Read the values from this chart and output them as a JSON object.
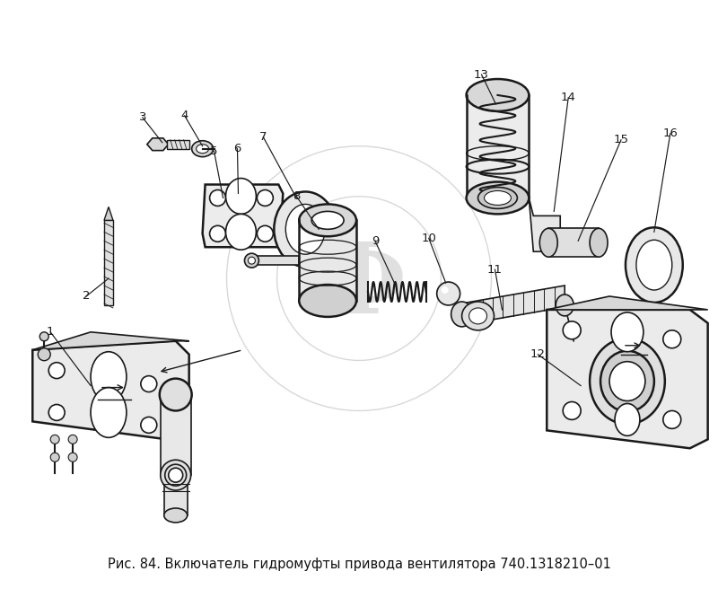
{
  "caption": "Рис. 84. Включатель гидромуфты привода вентилятора 740.1318210–01",
  "caption_fontsize": 10.5,
  "bg_color": "#ffffff",
  "fig_width": 8.0,
  "fig_height": 6.56,
  "dpi": 100,
  "title_color": "#111111",
  "watermark_color": "#e0e0e0",
  "line_color": "#1a1a1a",
  "fill_color": "#f0f0f0",
  "dark_fill": "#d0d0d0"
}
